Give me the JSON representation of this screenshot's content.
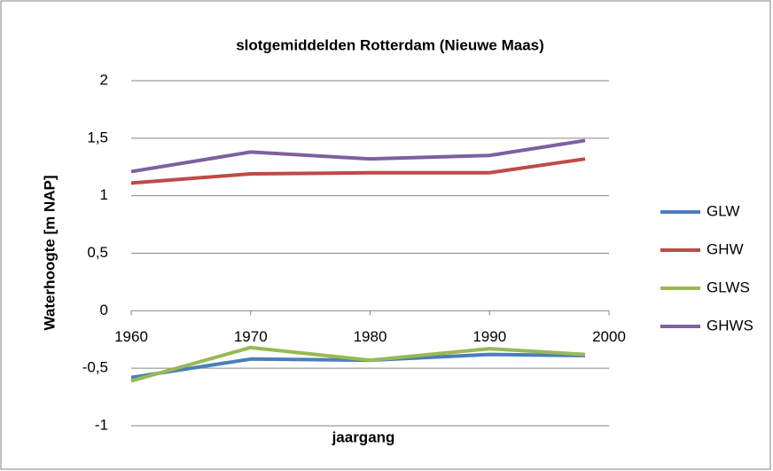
{
  "chart_data": {
    "type": "line",
    "title": "slotgemiddelden Rotterdam (Nieuwe Maas)",
    "x_label": "jaargang",
    "y_label": "Waterhoogte [m NAP]",
    "x": [
      1960,
      1970,
      1980,
      1990,
      1998
    ],
    "series": [
      {
        "name": "GLW",
        "color": "#4a7ebb",
        "values": [
          -0.58,
          -0.42,
          -0.43,
          -0.38,
          -0.39
        ]
      },
      {
        "name": "GHW",
        "color": "#be4b48",
        "values": [
          1.11,
          1.19,
          1.2,
          1.2,
          1.32
        ]
      },
      {
        "name": "GLWS",
        "color": "#98b954",
        "values": [
          -0.61,
          -0.32,
          -0.43,
          -0.33,
          -0.38
        ]
      },
      {
        "name": "GHWS",
        "color": "#7d60a0",
        "values": [
          1.21,
          1.38,
          1.32,
          1.35,
          1.48
        ]
      }
    ],
    "xlim": [
      1960,
      2000
    ],
    "xticks": [
      1960,
      1970,
      1980,
      1990,
      2000
    ],
    "ylim": [
      -1,
      2
    ],
    "yticks": [
      -1,
      {
        "value": -0.5,
        "label": "-0,5"
      },
      0,
      {
        "value": 0.5,
        "label": "0,5"
      },
      1,
      {
        "value": 1.5,
        "label": "1,5"
      },
      2
    ],
    "grid": true,
    "legend": "right"
  }
}
